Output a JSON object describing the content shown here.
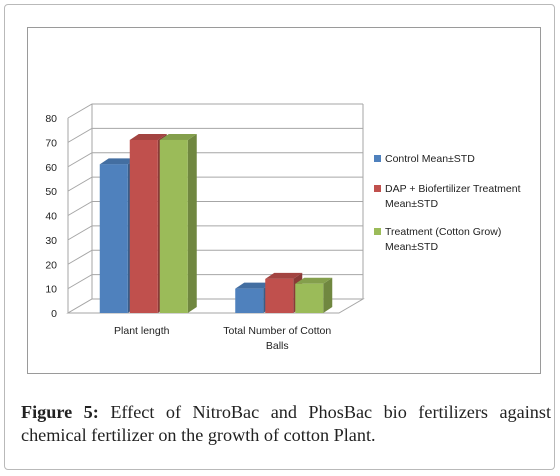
{
  "caption": {
    "label": "Figure 5:",
    "text": " Effect of NitroBac and PhosBac bio fertilizers against chemical fertilizer on the growth of cotton Plant."
  },
  "chart_data": {
    "type": "bar",
    "title": "",
    "xlabel": "",
    "ylabel": "",
    "ylim": [
      0,
      80
    ],
    "yticks": [
      0,
      10,
      20,
      30,
      40,
      50,
      60,
      70,
      80
    ],
    "grid": true,
    "three_d": true,
    "legend_position": "right",
    "categories": [
      "Plant length",
      "Total Number of Cotton Balls"
    ],
    "series": [
      {
        "name": "Control Mean±STD",
        "values": [
          61,
          10
        ],
        "color": "#4f81bd"
      },
      {
        "name": "DAP + Biofertilizer Treatment Mean±STD",
        "values": [
          71,
          14
        ],
        "color": "#c0504d"
      },
      {
        "name": "Treatment (Cotton Grow) Mean±STD",
        "values": [
          71,
          12
        ],
        "color": "#9bbb59"
      }
    ]
  }
}
